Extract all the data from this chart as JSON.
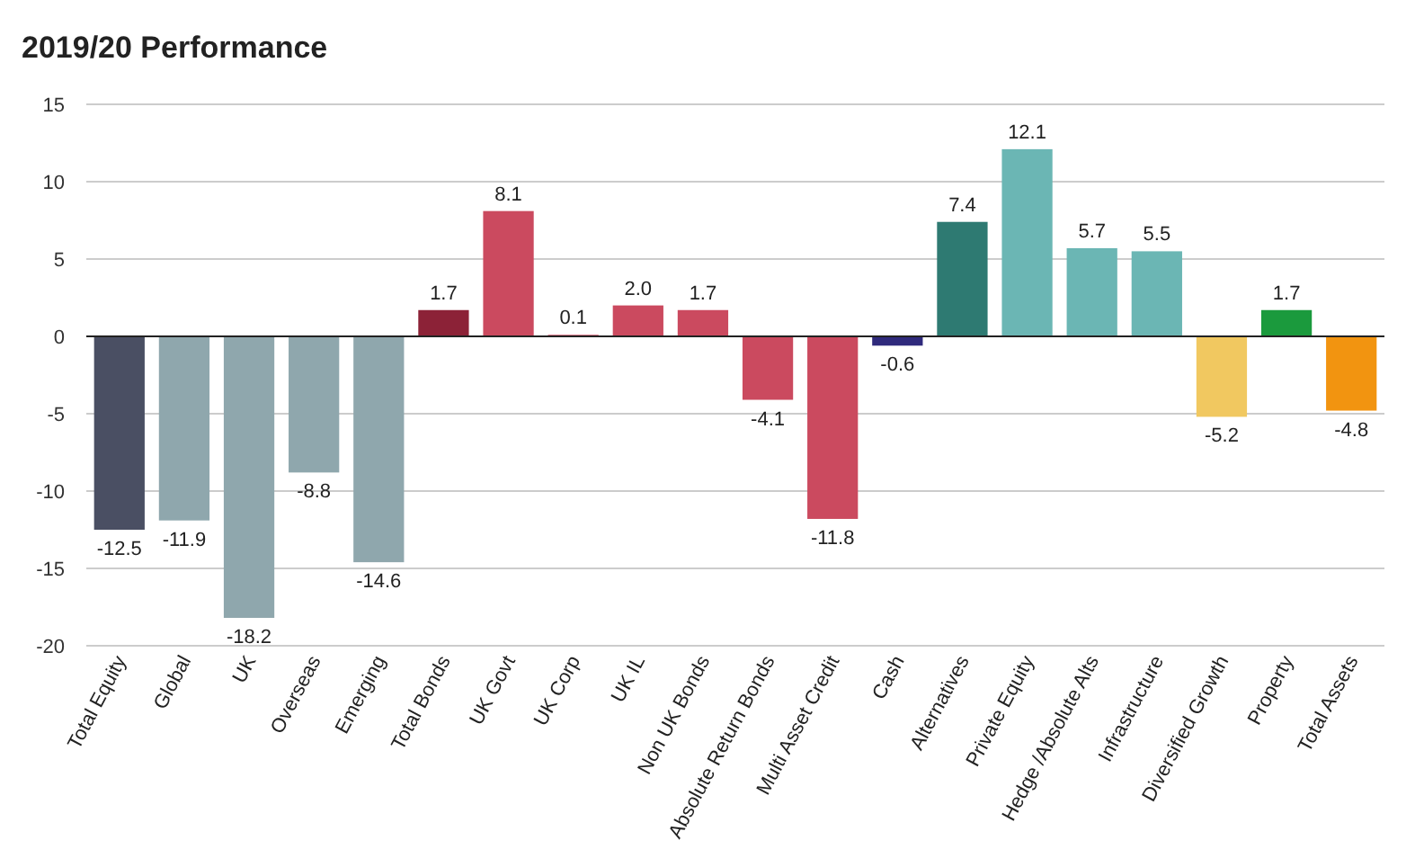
{
  "chart_data": {
    "type": "bar",
    "title": "2019/20 Performance",
    "categories": [
      "Total Equity",
      "Global",
      "UK",
      "Overseas",
      "Emerging",
      "Total Bonds",
      "UK Govt",
      "UK Corp",
      "UK IL",
      "Non UK Bonds",
      "Absolute Return Bonds",
      "Multi Asset Credit",
      "Cash",
      "Alternatives",
      "Private Equity",
      "Hedge /Absolute Alts",
      "Infrastructure",
      "Diversified Growth",
      "Property",
      "Total Assets"
    ],
    "values": [
      -12.5,
      -11.9,
      -18.2,
      -8.8,
      -14.6,
      1.7,
      8.1,
      0.1,
      2.0,
      1.7,
      -4.1,
      -11.8,
      -0.6,
      7.4,
      12.1,
      5.7,
      5.5,
      -5.2,
      1.7,
      -4.8
    ],
    "value_labels": [
      "-12.5",
      "-11.9",
      "-18.2",
      "-8.8",
      "-14.6",
      "1.7",
      "8.1",
      "0.1",
      "2.0",
      "1.7",
      "-4.1",
      "-11.8",
      "-0.6",
      "7.4",
      "12.1",
      "5.7",
      "5.5",
      "-5.2",
      "1.7",
      "-4.8"
    ],
    "colors": [
      "#4a4f63",
      "#8fa7ad",
      "#8fa7ad",
      "#8fa7ad",
      "#8fa7ad",
      "#8c2237",
      "#cb4a5f",
      "#cb4a5f",
      "#cb4a5f",
      "#cb4a5f",
      "#cb4a5f",
      "#cb4a5f",
      "#2f2a7c",
      "#2e7a72",
      "#6bb6b4",
      "#6bb6b4",
      "#6bb6b4",
      "#f1c860",
      "#1b9a3d",
      "#f29410"
    ],
    "ylim": [
      -20,
      15
    ],
    "yticks": [
      -20,
      -15,
      -10,
      -5,
      0,
      5,
      10,
      15
    ],
    "grid": "y"
  }
}
